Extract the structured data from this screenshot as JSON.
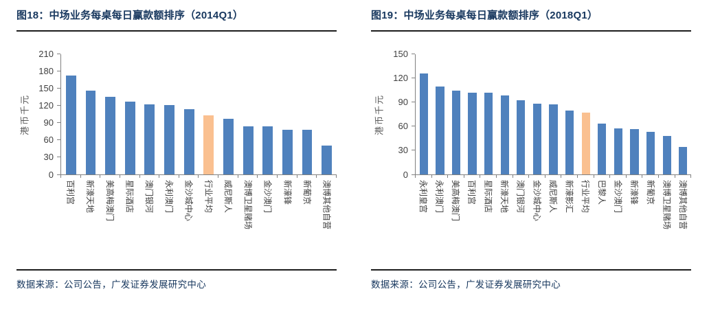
{
  "source_note": "数据来源：公司公告，广发证券发展研究中心",
  "colors": {
    "bar_blue": "#4F81BD",
    "bar_highlight_orange": "#FAC090",
    "title_navy": "#17375E",
    "axis_gray": "#808080"
  },
  "chart_data": [
    {
      "type": "bar",
      "title": "图18：中场业务每桌每日赢款额排序（2014Q1）",
      "ylabel": "港币千元",
      "xlabel": "",
      "ylim": [
        0,
        210
      ],
      "ytick_step": 30,
      "grid": false,
      "legend": "none",
      "categories": [
        "百利宫",
        "新濠天地",
        "美高梅澳门",
        "星际酒店",
        "澳门银河",
        "永利澳门",
        "金沙城中心",
        "行业平均",
        "威尼斯人",
        "澳博卫星赌场",
        "金沙澳门",
        "新濠锋",
        "新葡京",
        "澳博其他自营"
      ],
      "values": [
        172,
        146,
        135,
        127,
        122,
        121,
        113,
        103,
        97,
        84,
        83,
        78,
        77,
        50
      ],
      "highlight_category": "行业平均",
      "highlight_index": 7,
      "bar_color": "#4F81BD",
      "highlight_color": "#FAC090",
      "source": "数据来源：公司公告，广发证券发展研究中心"
    },
    {
      "type": "bar",
      "title": "图19：中场业务每桌每日赢款额排序（2018Q1）",
      "ylabel": "港币千元",
      "xlabel": "",
      "ylim": [
        0,
        150
      ],
      "ytick_step": 30,
      "grid": false,
      "legend": "none",
      "categories": [
        "永利皇宫",
        "永利澳门",
        "美高梅澳门",
        "百利宫",
        "星际酒店",
        "新濠天地",
        "澳门银河",
        "金沙城中心",
        "威尼斯人",
        "新濠影汇",
        "行业平均",
        "巴黎人",
        "金沙澳门",
        "新濠锋",
        "新葡京",
        "澳博卫星赌场",
        "澳博其他自营"
      ],
      "values": [
        126,
        109,
        104,
        102,
        102,
        98,
        92,
        88,
        87,
        79,
        77,
        63,
        57,
        56,
        53,
        48,
        34
      ],
      "highlight_category": "行业平均",
      "highlight_index": 10,
      "bar_color": "#4F81BD",
      "highlight_color": "#FAC090",
      "source": "数据来源：公司公告，广发证券发展研究中心"
    }
  ]
}
